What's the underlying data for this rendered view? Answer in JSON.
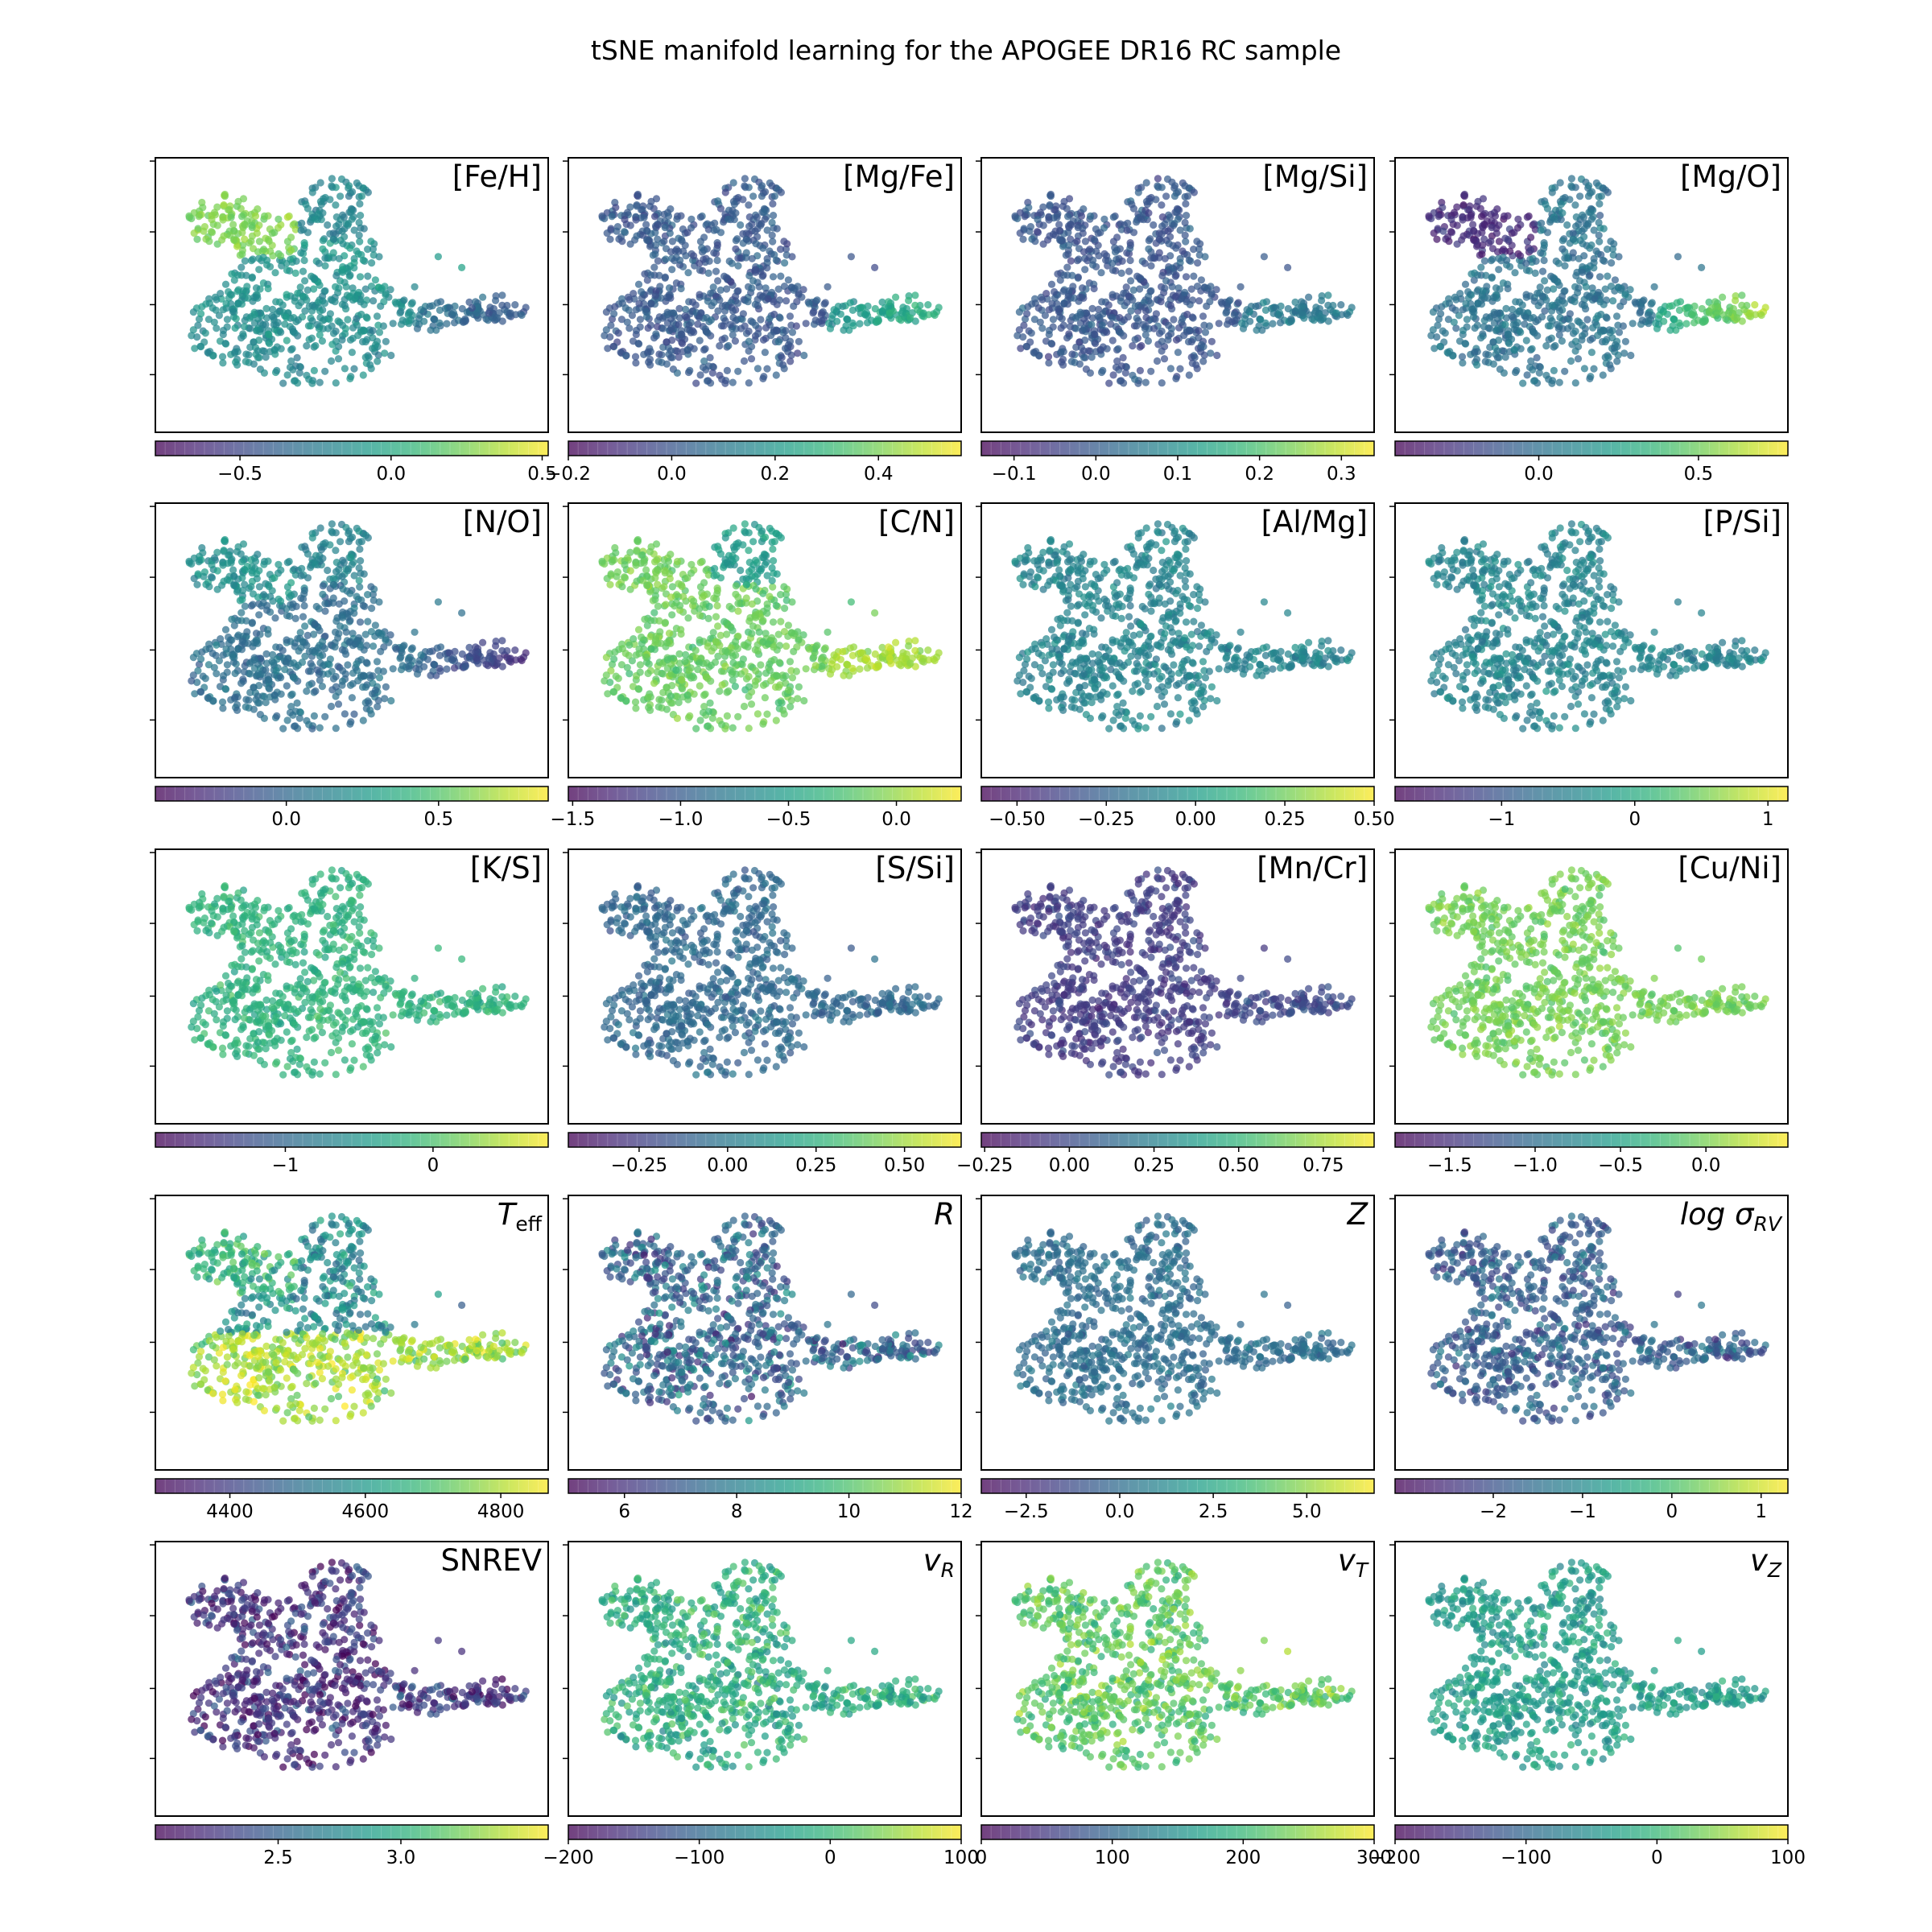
{
  "figure": {
    "title": "tSNE manifold learning for the APOGEE DR16 RC sample"
  },
  "chart_data": [
    {
      "type": "scatter",
      "label": "[Fe/H]",
      "cmap": "viridis",
      "vmin": -0.78,
      "vmax": 0.52,
      "ticks": [
        -0.5,
        0.0,
        0.5
      ],
      "tick_labels": [
        "−0.5",
        "0.0",
        "0.5"
      ],
      "pattern": "feh"
    },
    {
      "type": "scatter",
      "label": "[Mg/Fe]",
      "cmap": "viridis",
      "vmin": -0.2,
      "vmax": 0.56,
      "ticks": [
        -0.2,
        0.0,
        0.2,
        0.4
      ],
      "tick_labels": [
        "−0.2",
        "0.0",
        "0.2",
        "0.4"
      ],
      "pattern": "arm_high"
    },
    {
      "type": "scatter",
      "label": "[Mg/Si]",
      "cmap": "viridis",
      "vmin": -0.14,
      "vmax": 0.34,
      "ticks": [
        -0.1,
        0.0,
        0.1,
        0.2,
        0.3
      ],
      "tick_labels": [
        "−0.1",
        "0.0",
        "0.1",
        "0.2",
        "0.3"
      ],
      "pattern": "arm_mid"
    },
    {
      "type": "scatter",
      "label": "[Mg/O]",
      "cmap": "viridis",
      "vmin": -0.45,
      "vmax": 0.78,
      "ticks": [
        0.0,
        0.5
      ],
      "tick_labels": [
        "0.0",
        "0.5"
      ],
      "pattern": "mgo"
    },
    {
      "type": "scatter",
      "label": "[N/O]",
      "cmap": "viridis",
      "vmin": -0.43,
      "vmax": 0.86,
      "ticks": [
        0.0,
        0.5
      ],
      "tick_labels": [
        "0.0",
        "0.5"
      ],
      "pattern": "no"
    },
    {
      "type": "scatter",
      "label": "[C/N]",
      "cmap": "viridis",
      "vmin": -1.52,
      "vmax": 0.3,
      "ticks": [
        -1.5,
        -1.0,
        -0.5,
        0.0
      ],
      "tick_labels": [
        "−1.5",
        "−1.0",
        "−0.5",
        "0.0"
      ],
      "pattern": "cn"
    },
    {
      "type": "scatter",
      "label": "[Al/Mg]",
      "cmap": "viridis",
      "vmin": -0.6,
      "vmax": 0.5,
      "ticks": [
        -0.5,
        -0.25,
        0.0,
        0.25,
        0.5
      ],
      "tick_labels": [
        "−0.50",
        "−0.25",
        "0.00",
        "0.25",
        "0.50"
      ],
      "pattern": "flat_mid"
    },
    {
      "type": "scatter",
      "label": "[P/Si]",
      "cmap": "viridis",
      "vmin": -1.8,
      "vmax": 1.15,
      "ticks": [
        -1,
        0,
        1
      ],
      "tick_labels": [
        "−1",
        "0",
        "1"
      ],
      "pattern": "flat_mid"
    },
    {
      "type": "scatter",
      "label": "[K/S]",
      "cmap": "viridis",
      "vmin": -1.88,
      "vmax": 0.78,
      "ticks": [
        -1,
        0
      ],
      "tick_labels": [
        "−1",
        "0"
      ],
      "pattern": "flat_high"
    },
    {
      "type": "scatter",
      "label": "[S/Si]",
      "cmap": "viridis",
      "vmin": -0.45,
      "vmax": 0.66,
      "ticks": [
        -0.25,
        0.0,
        0.25,
        0.5
      ],
      "tick_labels": [
        "−0.25",
        "0.00",
        "0.25",
        "0.50"
      ],
      "pattern": "flat_lowmid"
    },
    {
      "type": "scatter",
      "label": "[Mn/Cr]",
      "cmap": "viridis",
      "vmin": -0.26,
      "vmax": 0.9,
      "ticks": [
        -0.25,
        0.0,
        0.25,
        0.5,
        0.75
      ],
      "tick_labels": [
        "−0.25",
        "0.00",
        "0.25",
        "0.50",
        "0.75"
      ],
      "pattern": "flat_low"
    },
    {
      "type": "scatter",
      "label": "[Cu/Ni]",
      "cmap": "viridis",
      "vmin": -1.82,
      "vmax": 0.48,
      "ticks": [
        -1.5,
        -1.0,
        -0.5,
        0.0
      ],
      "tick_labels": [
        "−1.5",
        "−1.0",
        "−0.5",
        "0.0"
      ],
      "pattern": "flat_vhigh"
    },
    {
      "type": "scatter",
      "label": "T_eff",
      "label_main": "T",
      "label_sub": "eff",
      "cmap": "viridis",
      "vmin": 4290,
      "vmax": 4870,
      "ticks": [
        4400,
        4600,
        4800
      ],
      "tick_labels": [
        "4400",
        "4600",
        "4800"
      ],
      "pattern": "teff"
    },
    {
      "type": "scatter",
      "label": "R",
      "label_main": "R",
      "cmap": "viridis",
      "vmin": 5,
      "vmax": 12,
      "ticks": [
        6,
        8,
        10,
        12
      ],
      "tick_labels": [
        "6",
        "8",
        "10",
        "12"
      ],
      "pattern": "rad"
    },
    {
      "type": "scatter",
      "label": "Z",
      "label_main": "Z",
      "cmap": "viridis",
      "vmin": -3.7,
      "vmax": 6.8,
      "ticks": [
        -2.5,
        0.0,
        2.5,
        5.0
      ],
      "tick_labels": [
        "−2.5",
        "0.0",
        "2.5",
        "5.0"
      ],
      "pattern": "z"
    },
    {
      "type": "scatter",
      "label": "log σ_RV",
      "label_main": "log σ",
      "label_sub": "RV",
      "cmap": "viridis",
      "vmin": -3.1,
      "vmax": 1.3,
      "ticks": [
        -2,
        -1,
        0,
        1
      ],
      "tick_labels": [
        "−2",
        "−1",
        "0",
        "1"
      ],
      "pattern": "sigrv"
    },
    {
      "type": "scatter",
      "label": "SNREV",
      "cmap": "viridis",
      "vmin": 2.0,
      "vmax": 3.6,
      "ticks": [
        2.5,
        3.0
      ],
      "tick_labels": [
        "2.5",
        "3.0"
      ],
      "pattern": "snrev"
    },
    {
      "type": "scatter",
      "label": "v_R",
      "label_main": "v",
      "label_sub": "R",
      "cmap": "viridis",
      "vmin": -200,
      "vmax": 100,
      "ticks": [
        -200,
        -100,
        0,
        100
      ],
      "tick_labels": [
        "−200",
        "−100",
        "0",
        "100"
      ],
      "pattern": "vr"
    },
    {
      "type": "scatter",
      "label": "v_T",
      "label_main": "v",
      "label_sub": "T",
      "cmap": "viridis",
      "vmin": 0,
      "vmax": 300,
      "ticks": [
        0,
        100,
        200,
        300
      ],
      "tick_labels": [
        "0",
        "100",
        "200",
        "300"
      ],
      "pattern": "vt"
    },
    {
      "type": "scatter",
      "label": "v_Z",
      "label_main": "v",
      "label_sub": "Z",
      "cmap": "viridis",
      "vmin": -200,
      "vmax": 100,
      "ticks": [
        -200,
        -100,
        0,
        100
      ],
      "tick_labels": [
        "−200",
        "−100",
        "0",
        "100"
      ],
      "pattern": "vz"
    }
  ]
}
